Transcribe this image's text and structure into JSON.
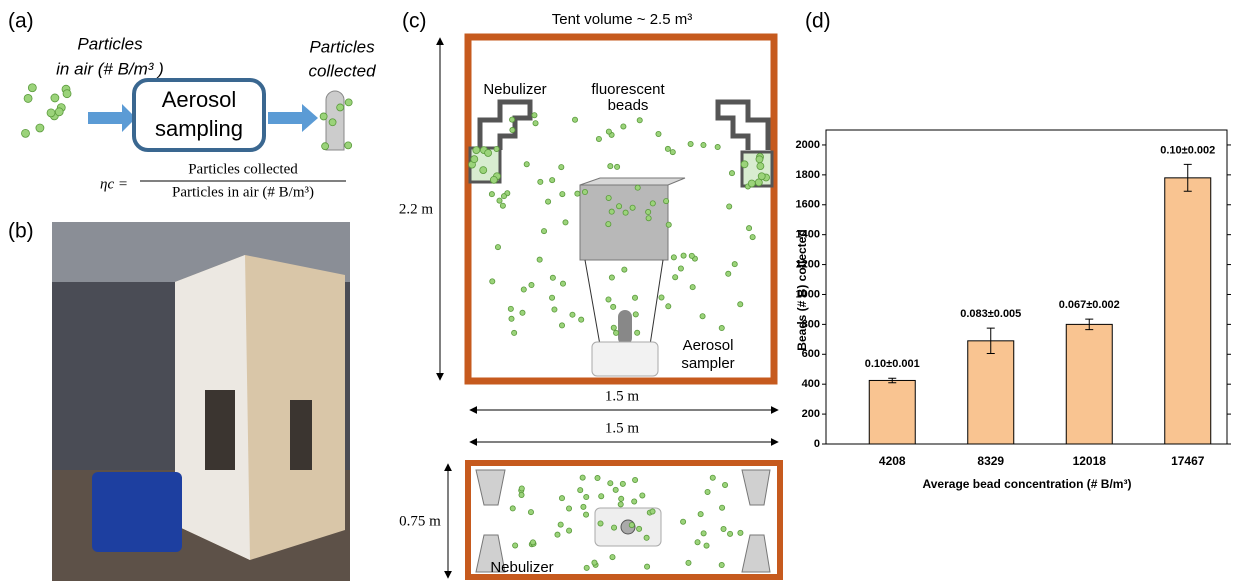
{
  "panel_a": {
    "label": "(a)",
    "in_air_1": "Particles",
    "in_air_2": "in air (# B/m³ )",
    "box_1": "Aerosol",
    "box_2": "sampling",
    "collected_1": "Particles",
    "collected_2": "collected",
    "formula_lhs": "ηc =",
    "formula_num": "Particles collected",
    "formula_den": "Particles in air  (# B/m³)"
  },
  "panel_b": {
    "label": "(b)"
  },
  "panel_c": {
    "label": "(c)",
    "title": "Tent volume ~ 2.5 m³",
    "nebulizer": "Nebulizer",
    "beads_1": "fluorescent",
    "beads_2": "beads",
    "height": "2.2 m",
    "sampler_1": "Aerosol",
    "sampler_2": "sampler",
    "width_side": "1.5 m",
    "width_top": "1.5 m",
    "depth": "0.75 m",
    "nebulizer_top": "Nebulizer"
  },
  "chart_data": {
    "type": "bar",
    "label": "(d)",
    "categories": [
      "4208",
      "8329",
      "12018",
      "17467"
    ],
    "values": [
      425,
      690,
      800,
      1780
    ],
    "errors": [
      15,
      85,
      35,
      90
    ],
    "annotations": [
      "0.10±0.001",
      "0.083±0.005",
      "0.067±0.002",
      "0.10±0.002"
    ],
    "color": "#f9c491",
    "ylim": [
      0,
      2100
    ],
    "yticks": [
      0,
      200,
      400,
      600,
      800,
      1000,
      1200,
      1400,
      1600,
      1800,
      2000
    ],
    "y_label": "Beads (# B) collected",
    "x_label": "Average bead concentration (# B/m³)"
  }
}
